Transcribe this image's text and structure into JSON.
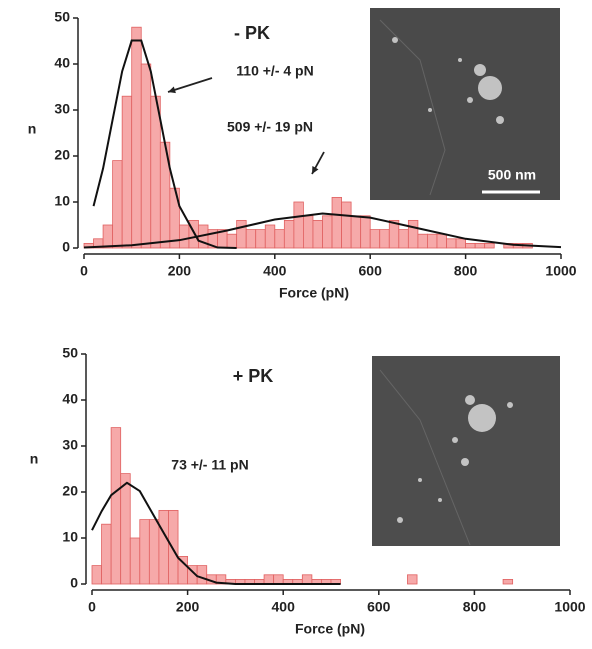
{
  "chart_data": [
    {
      "type": "histogram",
      "xlabel": "Force (pN)",
      "ylabel": "n",
      "bins": [
        0,
        20,
        40,
        60,
        80,
        100,
        120,
        140,
        160,
        180,
        200,
        220,
        240,
        260,
        280,
        300,
        320,
        340,
        360,
        380,
        400,
        420,
        440,
        460,
        480,
        500,
        520,
        540,
        560,
        580,
        600,
        620,
        640,
        660,
        680,
        700,
        720,
        740,
        760,
        780,
        800,
        820,
        840,
        860,
        880,
        900,
        920,
        940,
        960,
        980,
        1000
      ],
      "counts": [
        1,
        2,
        5,
        19,
        33,
        48,
        40,
        33,
        23,
        13,
        5,
        6,
        5,
        4,
        4,
        3,
        6,
        4,
        4,
        5,
        4,
        6,
        10,
        7,
        6,
        7,
        11,
        10,
        7,
        7,
        4,
        4,
        6,
        4,
        6,
        3,
        3,
        3,
        2,
        2,
        1,
        1,
        1,
        0,
        1,
        1,
        1,
        0,
        0,
        0
      ],
      "color": "#f6a9a9",
      "edge_color": "#e06060",
      "curves": [
        {
          "color": "#111111",
          "x": [
            20,
            40,
            60,
            80,
            100,
            120,
            140,
            160,
            180,
            200,
            240,
            280,
            320
          ],
          "values": [
            9.1,
            17.3,
            27.9,
            38.4,
            45.1,
            45.1,
            38.4,
            27.9,
            17.3,
            9.1,
            1.6,
            0.1,
            0
          ]
        },
        {
          "color": "#111111",
          "x": [
            0,
            100,
            200,
            300,
            400,
            500,
            600,
            700,
            800,
            900,
            1000
          ],
          "values": [
            0.1,
            0.6,
            1.7,
            3.8,
            6.2,
            7.5,
            6.6,
            4.3,
            2.0,
            0.7,
            0.2
          ]
        }
      ],
      "annotations": [
        "- PK",
        "110 +/- 4 pN",
        "509 +/- 19 pN",
        "500 nm"
      ],
      "xlim": [
        0,
        1000
      ],
      "xticks": [
        0,
        200,
        400,
        600,
        800,
        1000
      ],
      "ylim": [
        0,
        50
      ],
      "yticks": [
        0,
        10,
        20,
        30,
        40,
        50
      ]
    },
    {
      "type": "histogram",
      "xlabel": "Force (pN)",
      "ylabel": "n",
      "bins": [
        0,
        20,
        40,
        60,
        80,
        100,
        120,
        140,
        160,
        180,
        200,
        220,
        240,
        260,
        280,
        300,
        320,
        340,
        360,
        380,
        400,
        420,
        440,
        460,
        480,
        500,
        520,
        540,
        560,
        580,
        600,
        620,
        640,
        660,
        680,
        700,
        720,
        740,
        760,
        780,
        800,
        820,
        840,
        860,
        880,
        900,
        920,
        940,
        960,
        980,
        1000
      ],
      "counts": [
        4,
        13,
        34,
        24,
        10,
        14,
        14,
        16,
        16,
        6,
        4,
        4,
        2,
        2,
        1,
        1,
        1,
        1,
        2,
        2,
        1,
        1,
        2,
        1,
        1,
        1,
        0,
        0,
        0,
        0,
        0,
        0,
        0,
        2,
        0,
        0,
        0,
        0,
        0,
        0,
        0,
        0,
        0,
        1,
        0,
        0,
        0,
        0,
        0,
        0
      ],
      "color": "#f6a9a9",
      "edge_color": "#e06060",
      "curves": [
        {
          "color": "#111111",
          "x": [
            0,
            20,
            40,
            73,
            100,
            140,
            180,
            220,
            260,
            300,
            400,
            520
          ],
          "values": [
            11.7,
            15.8,
            19.3,
            22,
            20.2,
            12.9,
            5.7,
            1.7,
            0.3,
            0,
            0,
            0
          ]
        }
      ],
      "annotations": [
        "+ PK",
        "73 +/- 11 pN"
      ],
      "xlim": [
        0,
        1000
      ],
      "xticks": [
        0,
        200,
        400,
        600,
        800,
        1000
      ],
      "ylim": [
        0,
        50
      ],
      "yticks": [
        0,
        10,
        20,
        30,
        40,
        50
      ]
    }
  ]
}
